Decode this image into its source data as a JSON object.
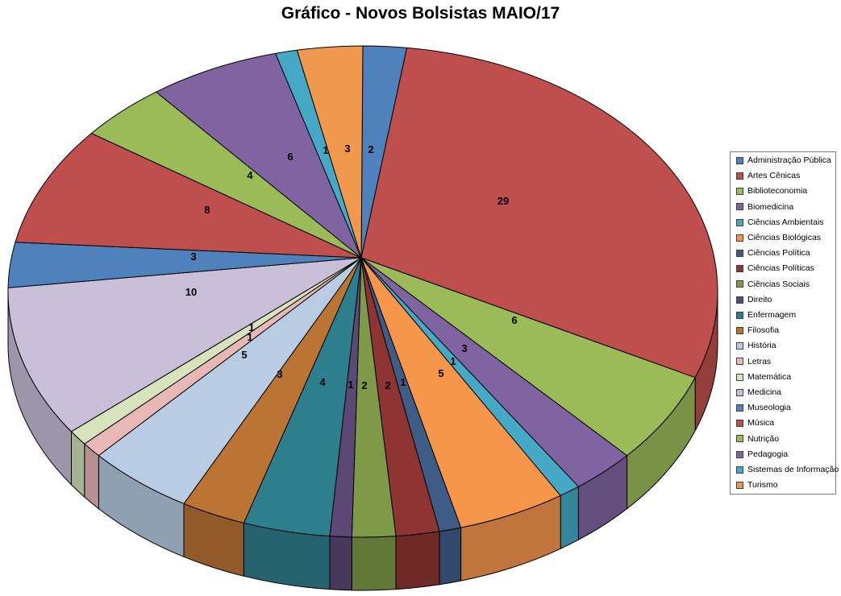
{
  "title": "Gráfico - Novos Bolsistas MAIO/17",
  "chart_data": {
    "type": "pie",
    "variant": "3d-pie",
    "title": "Gráfico - Novos Bolsistas MAIO/17",
    "legend_position": "right",
    "data_labels_shown": true,
    "total": 101,
    "start_angle_deg": 0,
    "direction": "clockwise",
    "categories": [
      "Administração Pública",
      "Artes Cênicas",
      "Biblioteconomia",
      "Biomedicina",
      "Ciências Ambientais",
      "Ciências Biológicas",
      "Ciências Política",
      "Ciências Políticas",
      "Ciências Sociais",
      "Direito",
      "Enfermagem",
      "Filosofia",
      "História",
      "Letras",
      "Matemática",
      "Medicina",
      "Museologia",
      "Música",
      "Nutrição",
      "Pedagogia",
      "Sistemas de Informação",
      "Turismo"
    ],
    "values": [
      2,
      29,
      6,
      3,
      1,
      5,
      1,
      2,
      2,
      1,
      4,
      3,
      5,
      1,
      1,
      10,
      3,
      8,
      4,
      6,
      1,
      3
    ],
    "colors": [
      "#4F81BD",
      "#BE4F4C",
      "#9BBB59",
      "#8064A2",
      "#45A9C5",
      "#F5964B",
      "#3E5C86",
      "#8E3432",
      "#7E9A49",
      "#5C4875",
      "#2E7F8D",
      "#BC7434",
      "#B8CCE4",
      "#E8B8B7",
      "#D6E3BC",
      "#C9BFD9",
      "#4F81BD",
      "#BE4F4C",
      "#9BBB59",
      "#8064A2",
      "#45A9C5",
      "#F0994E"
    ],
    "colors_note": {
      "outline": "#000000",
      "legend_border": "#808080",
      "background": "#FFFFFF"
    }
  }
}
